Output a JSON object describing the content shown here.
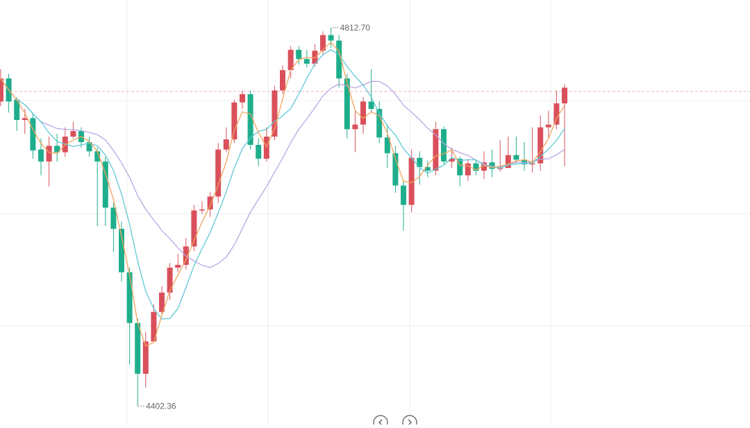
{
  "chart_data": {
    "type": "candlestick",
    "ylim": [
      4390,
      4850
    ],
    "grid": true,
    "current_price": 4751,
    "high_label": "4812.70",
    "low_label": "4402.36",
    "colors": {
      "up": "#d9505b",
      "down": "#1fae8c",
      "ma_short": "#f0a45d",
      "ma_mid": "#5fc9d6",
      "ma_long": "#b9a6e2",
      "grid": "#eeeeee",
      "price_line": "#e8b4c0",
      "text": "#666666"
    },
    "candles": [
      [
        4740,
        4765,
        4775,
        4735
      ],
      [
        4765,
        4740,
        4770,
        4728
      ],
      [
        4742,
        4720,
        4745,
        4708
      ],
      [
        4720,
        4722,
        4732,
        4705
      ],
      [
        4722,
        4687,
        4728,
        4678
      ],
      [
        4688,
        4675,
        4700,
        4660
      ],
      [
        4675,
        4692,
        4702,
        4648
      ],
      [
        4692,
        4685,
        4705,
        4675
      ],
      [
        4685,
        4702,
        4712,
        4680
      ],
      [
        4702,
        4708,
        4718,
        4700
      ],
      [
        4708,
        4696,
        4712,
        4690
      ],
      [
        4696,
        4686,
        4702,
        4680
      ],
      [
        4686,
        4675,
        4690,
        4605
      ],
      [
        4675,
        4625,
        4680,
        4605
      ],
      [
        4625,
        4602,
        4630,
        4577
      ],
      [
        4602,
        4555,
        4610,
        4545
      ],
      [
        4555,
        4500,
        4560,
        4455
      ],
      [
        4500,
        4445,
        4505,
        4410
      ],
      [
        4445,
        4480,
        4490,
        4430
      ],
      [
        4480,
        4512,
        4520,
        4480
      ],
      [
        4512,
        4533,
        4540,
        4510
      ],
      [
        4533,
        4560,
        4565,
        4525
      ],
      [
        4560,
        4563,
        4575,
        4555
      ],
      [
        4563,
        4583,
        4592,
        4558
      ],
      [
        4583,
        4622,
        4628,
        4578
      ],
      [
        4622,
        4623,
        4632,
        4618
      ],
      [
        4623,
        4637,
        4642,
        4615
      ],
      [
        4637,
        4688,
        4695,
        4630
      ],
      [
        4688,
        4699,
        4712,
        4685
      ],
      [
        4699,
        4739,
        4742,
        4695
      ],
      [
        4739,
        4748,
        4752,
        4732
      ],
      [
        4748,
        4693,
        4752,
        4688
      ],
      [
        4693,
        4678,
        4700,
        4670
      ],
      [
        4678,
        4702,
        4712,
        4675
      ],
      [
        4702,
        4752,
        4757,
        4698
      ],
      [
        4752,
        4774,
        4779,
        4748
      ],
      [
        4774,
        4796,
        4800,
        4765
      ],
      [
        4796,
        4786,
        4800,
        4780
      ],
      [
        4786,
        4781,
        4796,
        4777
      ],
      [
        4781,
        4795,
        4802,
        4778
      ],
      [
        4795,
        4812,
        4816,
        4790
      ],
      [
        4812,
        4806,
        4820,
        4798
      ],
      [
        4806,
        4765,
        4812,
        4755
      ],
      [
        4765,
        4710,
        4770,
        4700
      ],
      [
        4710,
        4715,
        4730,
        4685
      ],
      [
        4715,
        4740,
        4745,
        4705
      ],
      [
        4740,
        4732,
        4775,
        4728
      ],
      [
        4732,
        4701,
        4740,
        4695
      ],
      [
        4701,
        4684,
        4715,
        4668
      ],
      [
        4684,
        4649,
        4692,
        4641
      ],
      [
        4649,
        4628,
        4655,
        4600
      ],
      [
        4628,
        4679,
        4688,
        4620
      ],
      [
        4679,
        4669,
        4686,
        4650
      ],
      [
        4669,
        4665,
        4676,
        4658
      ],
      [
        4665,
        4710,
        4718,
        4660
      ],
      [
        4710,
        4675,
        4713,
        4672
      ],
      [
        4675,
        4678,
        4690,
        4668
      ],
      [
        4678,
        4660,
        4680,
        4648
      ],
      [
        4660,
        4673,
        4678,
        4654
      ],
      [
        4673,
        4665,
        4676,
        4660
      ],
      [
        4665,
        4674,
        4686,
        4656
      ],
      [
        4674,
        4667,
        4688,
        4658
      ],
      [
        4667,
        4668,
        4698,
        4664
      ],
      [
        4668,
        4682,
        4702,
        4675
      ],
      [
        4682,
        4677,
        4702,
        4673
      ],
      [
        4677,
        4672,
        4696,
        4665
      ],
      [
        4672,
        4673,
        4712,
        4663
      ],
      [
        4673,
        4712,
        4725,
        4665
      ],
      [
        4712,
        4715,
        4730,
        4700
      ],
      [
        4715,
        4738,
        4752,
        4710
      ],
      [
        4738,
        4755,
        4759,
        4670
      ]
    ]
  },
  "nav": {
    "prev_label": "",
    "next_label": ""
  }
}
